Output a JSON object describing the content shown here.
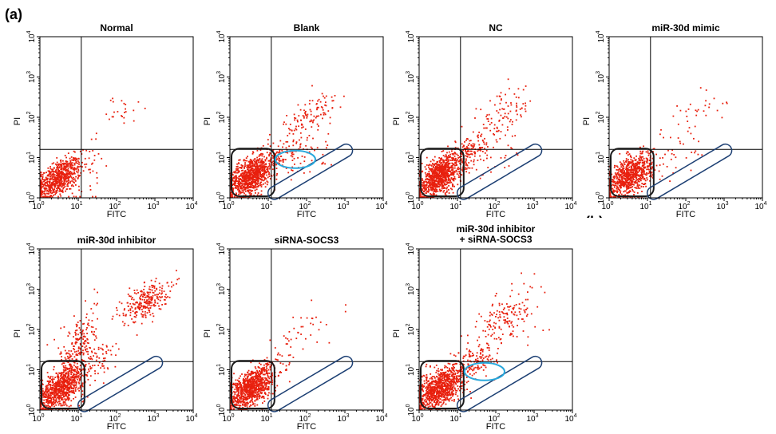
{
  "figure_label": "(a)",
  "cut_label": "(b)",
  "chart_data": [
    {
      "type": "scatter",
      "title": "Normal",
      "xlabel": "FITC",
      "ylabel": "PI",
      "x_scale": "log",
      "y_scale": "log",
      "xlim": [
        1,
        10000
      ],
      "ylim": [
        1,
        10000
      ],
      "quadrant_gate": {
        "x": 12,
        "y": 16
      },
      "grid": false,
      "clusters": [
        {
          "x": 3,
          "y": 3,
          "sx": 0.3,
          "sy": 0.25,
          "n": 700
        },
        {
          "x": 15,
          "y": 3,
          "sx": 0.4,
          "sy": 0.5,
          "n": 30
        },
        {
          "x": 120,
          "y": 140,
          "sx": 0.35,
          "sy": 0.25,
          "n": 25
        }
      ],
      "gates": []
    },
    {
      "type": "scatter",
      "title": "Blank",
      "xlabel": "FITC",
      "ylabel": "PI",
      "x_scale": "log",
      "y_scale": "log",
      "xlim": [
        1,
        10000
      ],
      "ylim": [
        1,
        10000
      ],
      "quadrant_gate": {
        "x": 12,
        "y": 16
      },
      "grid": false,
      "clusters": [
        {
          "x": 3.5,
          "y": 3.5,
          "sx": 0.3,
          "sy": 0.27,
          "n": 900
        },
        {
          "x": 25,
          "y": 12,
          "sx": 0.35,
          "sy": 0.25,
          "n": 90
        },
        {
          "x": 60,
          "y": 8,
          "sx": 0.5,
          "sy": 0.3,
          "n": 40
        },
        {
          "x": 130,
          "y": 110,
          "sx": 0.35,
          "sy": 0.3,
          "n": 110
        }
      ],
      "gates": [
        {
          "shape": "live",
          "color": "#1a1a1a"
        },
        {
          "shape": "diag",
          "color": "#1c3f73"
        },
        {
          "shape": "ellipse",
          "color": "#29a8dc"
        }
      ]
    },
    {
      "type": "scatter",
      "title": "NC",
      "xlabel": "FITC",
      "ylabel": "PI",
      "x_scale": "log",
      "y_scale": "log",
      "xlim": [
        1,
        10000
      ],
      "ylim": [
        1,
        10000
      ],
      "quadrant_gate": {
        "x": 12,
        "y": 16
      },
      "grid": false,
      "clusters": [
        {
          "x": 3.5,
          "y": 3.5,
          "sx": 0.3,
          "sy": 0.27,
          "n": 900
        },
        {
          "x": 20,
          "y": 14,
          "sx": 0.3,
          "sy": 0.2,
          "n": 120
        },
        {
          "x": 60,
          "y": 8,
          "sx": 0.5,
          "sy": 0.3,
          "n": 30
        },
        {
          "x": 150,
          "y": 100,
          "sx": 0.4,
          "sy": 0.35,
          "n": 100
        }
      ],
      "gates": [
        {
          "shape": "live",
          "color": "#1a1a1a"
        },
        {
          "shape": "diag",
          "color": "#1c3f73"
        }
      ]
    },
    {
      "type": "scatter",
      "title": "miR-30d mimic",
      "xlabel": "FITC",
      "ylabel": "PI",
      "x_scale": "log",
      "y_scale": "log",
      "xlim": [
        1,
        10000
      ],
      "ylim": [
        1,
        10000
      ],
      "quadrant_gate": {
        "x": 12,
        "y": 16
      },
      "grid": false,
      "clusters": [
        {
          "x": 3.5,
          "y": 3.5,
          "sx": 0.3,
          "sy": 0.27,
          "n": 800
        },
        {
          "x": 50,
          "y": 8,
          "sx": 0.45,
          "sy": 0.3,
          "n": 30
        },
        {
          "x": 180,
          "y": 120,
          "sx": 0.4,
          "sy": 0.3,
          "n": 35
        }
      ],
      "gates": [
        {
          "shape": "live",
          "color": "#1a1a1a"
        },
        {
          "shape": "diag",
          "color": "#1c3f73"
        }
      ]
    },
    {
      "type": "scatter",
      "title": "miR-30d inhibitor",
      "xlabel": "FITC",
      "ylabel": "PI",
      "x_scale": "log",
      "y_scale": "log",
      "xlim": [
        1,
        10000
      ],
      "ylim": [
        1,
        10000
      ],
      "quadrant_gate": {
        "x": 12,
        "y": 16
      },
      "grid": false,
      "clusters": [
        {
          "x": 3.5,
          "y": 3.5,
          "sx": 0.3,
          "sy": 0.27,
          "n": 800
        },
        {
          "x": 10,
          "y": 40,
          "sx": 0.25,
          "sy": 0.45,
          "n": 200
        },
        {
          "x": 30,
          "y": 15,
          "sx": 0.35,
          "sy": 0.3,
          "n": 80
        },
        {
          "x": 550,
          "y": 500,
          "sx": 0.3,
          "sy": 0.25,
          "n": 260
        }
      ],
      "gates": [
        {
          "shape": "live",
          "color": "#1a1a1a"
        },
        {
          "shape": "diag",
          "color": "#1c3f73"
        }
      ]
    },
    {
      "type": "scatter",
      "title": "siRNA-SOCS3",
      "xlabel": "FITC",
      "ylabel": "PI",
      "x_scale": "log",
      "y_scale": "log",
      "xlim": [
        1,
        10000
      ],
      "ylim": [
        1,
        10000
      ],
      "quadrant_gate": {
        "x": 12,
        "y": 16
      },
      "grid": false,
      "clusters": [
        {
          "x": 3.5,
          "y": 3.5,
          "sx": 0.3,
          "sy": 0.27,
          "n": 900
        },
        {
          "x": 15,
          "y": 10,
          "sx": 0.3,
          "sy": 0.25,
          "n": 40
        },
        {
          "x": 80,
          "y": 90,
          "sx": 0.35,
          "sy": 0.3,
          "n": 35
        }
      ],
      "gates": [
        {
          "shape": "live",
          "color": "#1a1a1a"
        },
        {
          "shape": "diag",
          "color": "#1c3f73"
        }
      ]
    },
    {
      "type": "scatter",
      "title": [
        "miR-30d inhibitor",
        "+ siRNA-SOCS3"
      ],
      "xlabel": "FITC",
      "ylabel": "PI",
      "x_scale": "log",
      "y_scale": "log",
      "xlim": [
        1,
        10000
      ],
      "ylim": [
        1,
        10000
      ],
      "quadrant_gate": {
        "x": 12,
        "y": 16
      },
      "grid": false,
      "clusters": [
        {
          "x": 3.5,
          "y": 3.5,
          "sx": 0.3,
          "sy": 0.27,
          "n": 900
        },
        {
          "x": 25,
          "y": 14,
          "sx": 0.3,
          "sy": 0.25,
          "n": 120
        },
        {
          "x": 200,
          "y": 200,
          "sx": 0.45,
          "sy": 0.4,
          "n": 170
        }
      ],
      "gates": [
        {
          "shape": "live",
          "color": "#1a1a1a"
        },
        {
          "shape": "diag",
          "color": "#1c3f73"
        },
        {
          "shape": "ellipse",
          "color": "#29a8dc"
        }
      ]
    }
  ],
  "colors": {
    "dots": "#e8200e",
    "axis": "#000000",
    "live_gate": "#1a1a1a",
    "diag_gate": "#1c3f73",
    "ellipse_gate": "#29a8dc"
  }
}
